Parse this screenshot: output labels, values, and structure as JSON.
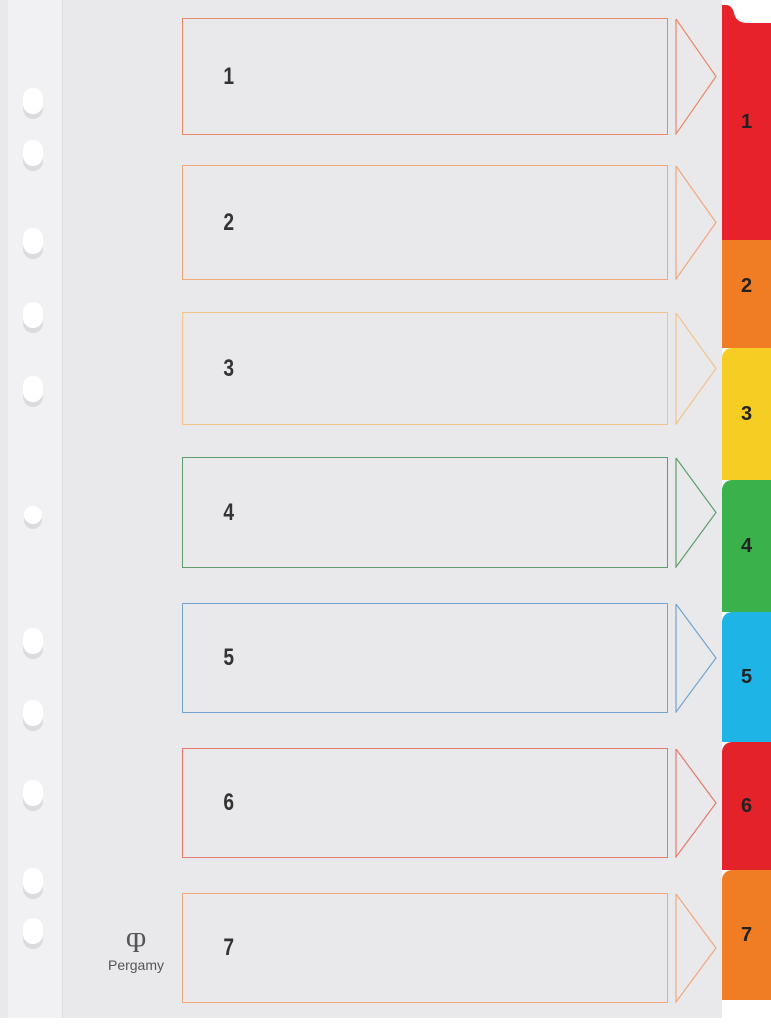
{
  "brand": "Pergamy",
  "dividers": [
    {
      "label": "1",
      "outline": "#e8896a",
      "tab": "#e8222a"
    },
    {
      "label": "2",
      "outline": "#f0a77a",
      "tab": "#f07c24"
    },
    {
      "label": "3",
      "outline": "#f2c48a",
      "tab": "#f6cd22"
    },
    {
      "label": "4",
      "outline": "#5f9e6c",
      "tab": "#3ab14a"
    },
    {
      "label": "5",
      "outline": "#74a4d2",
      "tab": "#1eb4e6"
    },
    {
      "label": "6",
      "outline": "#e27b6c",
      "tab": "#e3222a"
    },
    {
      "label": "7",
      "outline": "#f0a87e",
      "tab": "#f07c24"
    }
  ]
}
